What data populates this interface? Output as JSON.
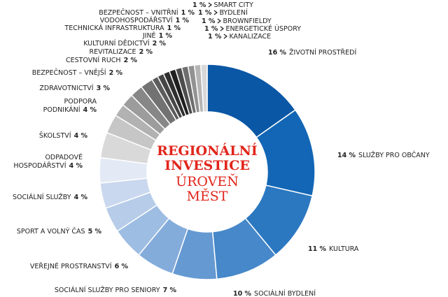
{
  "chart_data": {
    "type": "donut",
    "title": [
      "REGIONÁLNÍ",
      "INVESTICE"
    ],
    "subtitle": [
      "ÚROVEŇ",
      "MĚST"
    ],
    "categories": [
      "ŽIVOTNÍ PROSTŘEDÍ",
      "SLUŽBY PRO OBČANY",
      "KULTURA",
      "SOCIÁLNÍ BYDLENÍ",
      "SOCIÁLNÍ SLUŽBY PRO SENIORY",
      "VEŘEJNÉ PROSTRANSTVÍ",
      "SPORT A VOLNÝ ČAS",
      "SOCIÁLNÍ SLUŽBY",
      "ODPADOVÉ HOSPODÁŘSTVÍ",
      "ŠKOLSTVÍ",
      "PODPORA PODNIKÁNÍ",
      "ZDRAVOTNICTVÍ",
      "BEZPEČNOST – VNĚJŠÍ",
      "CESTOVNÍ RUCH",
      "REVITALIZACE",
      "KULTURNÍ DĚDICTVÍ",
      "JINÉ",
      "TECHNICKÁ INFRASTRUKTURA",
      "VODOHOSPODÁŘSTVÍ",
      "BEZPEČNOST – VNITŘNÍ",
      "BYDLENÍ",
      "SMART CITY",
      "BROWNFIELDY",
      "ENERGETICKÉ ÚSPORY",
      "KANALIZACE"
    ],
    "values": [
      16,
      14,
      11,
      10,
      7,
      6,
      5,
      4,
      4,
      4,
      4,
      3,
      2,
      2,
      2,
      2,
      1,
      1,
      1,
      1,
      1,
      1,
      1,
      1,
      1
    ],
    "value_labels": [
      "16 %",
      "14 %",
      "11 %",
      "10 %",
      "7 %",
      "6 %",
      "5 %",
      "4 %",
      "4 %",
      "4 %",
      "4 %",
      "3 %",
      "2 %",
      "2 %",
      "2 %",
      "2 %",
      "1 %",
      "1 %",
      "1 %",
      "1 %",
      "1 %",
      "1 %",
      "1 %",
      "1 %",
      "1 %"
    ],
    "colors": [
      "#0a57a5",
      "#1266b5",
      "#2b78c1",
      "#4688c9",
      "#6599d2",
      "#84acdb",
      "#9ebde2",
      "#b6cce8",
      "#c9d8ee",
      "#e3eaf5",
      "#d9d9d9",
      "#c6c6c6",
      "#b2b2b2",
      "#9c9c9c",
      "#878787",
      "#727272",
      "#5c5c5c",
      "#464646",
      "#2f2f2f",
      "#1f1f1f",
      "#4d4d4d",
      "#6e6e6e",
      "#929292",
      "#b5b5b5",
      "#d8d8d8"
    ]
  }
}
